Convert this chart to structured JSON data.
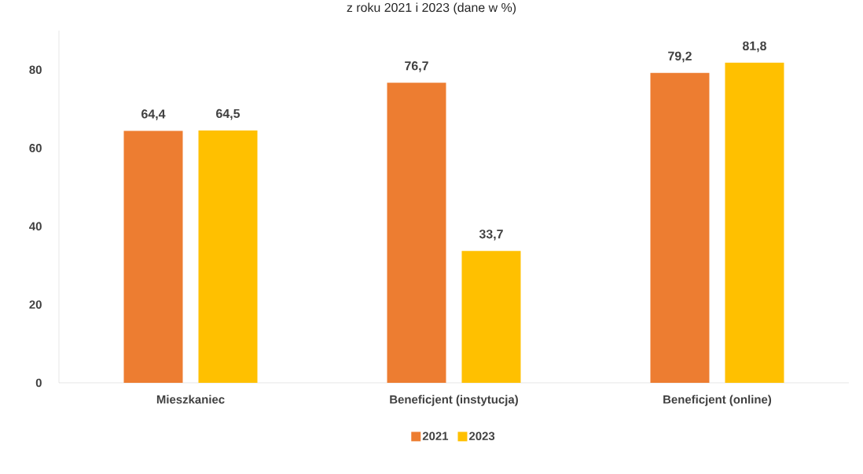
{
  "chart_data": {
    "type": "bar",
    "title": "z roku 2021 i 2023 (dane w %)",
    "categories": [
      "Mieszkaniec",
      "Beneficjent (instytucja)",
      "Beneficjent (online)"
    ],
    "series": [
      {
        "name": "2021",
        "color": "#ed7d31",
        "values": [
          64.4,
          76.7,
          79.2
        ],
        "value_labels": [
          "64,4",
          "76,7",
          "79,2"
        ]
      },
      {
        "name": "2023",
        "color": "#ffc000",
        "values": [
          64.5,
          33.7,
          81.8
        ],
        "value_labels": [
          "64,5",
          "33,7",
          "81,8"
        ]
      }
    ],
    "ylim": [
      0,
      90
    ],
    "yticks": [
      0,
      20,
      40,
      60,
      80
    ],
    "legend": "bottom"
  }
}
